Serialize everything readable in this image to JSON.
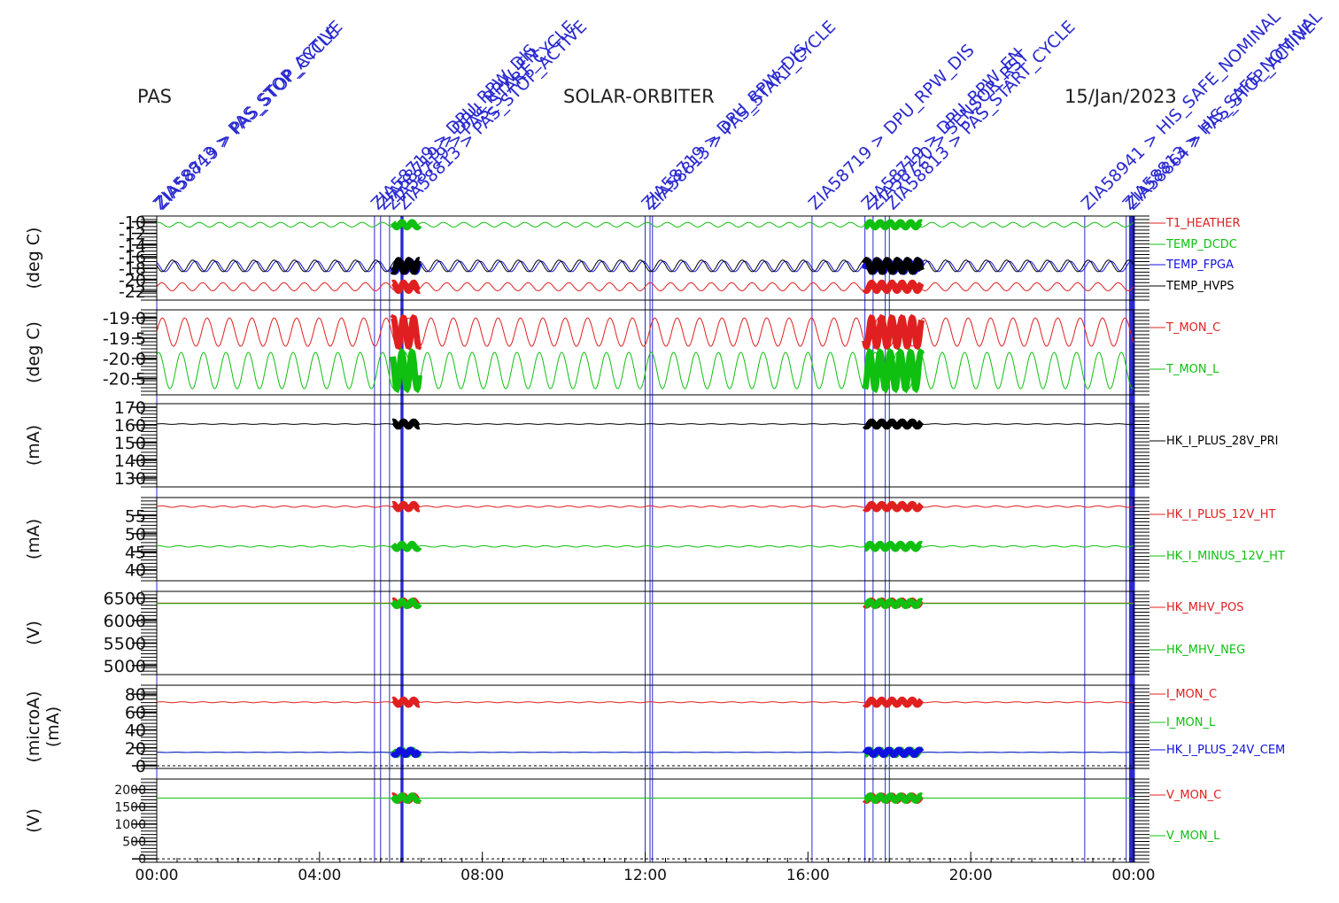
{
  "header": {
    "instrument": "PAS",
    "mission": "SOLAR-ORBITER",
    "date": "15/Jan/2023"
  },
  "colors": {
    "red": "#e02020",
    "green": "#10c010",
    "blue": "#1010e0",
    "black": "#000000",
    "event": "#2a2ad0"
  },
  "chart_data": {
    "type": "line",
    "x_axis": {
      "unit": "hours",
      "range": [
        0,
        24
      ],
      "ticks": [
        0,
        4,
        8,
        12,
        16,
        20,
        24
      ],
      "tick_labels": [
        "00:00",
        "04:00",
        "08:00",
        "12:00",
        "16:00",
        "20:00",
        "00:00"
      ]
    },
    "events": {
      "times": [
        0.0,
        5.35,
        5.5,
        5.72,
        6.0,
        6.03,
        12.0,
        12.12,
        12.18,
        16.1,
        17.4,
        17.6,
        17.9,
        18.0,
        22.8,
        23.82,
        23.9,
        23.94,
        23.97,
        24.0
      ],
      "labels": [
        {
          "t": 0.0,
          "text": "ZIA58843 > PAS_STOP_ACTIVE"
        },
        {
          "t": 0.05,
          "text": "ZIA58719 > PAS_STOP_CYCLE"
        },
        {
          "t": 5.35,
          "text": "ZIA58719 > DPU_RPW_DIS"
        },
        {
          "t": 5.5,
          "text": "ZIA58719 > DPU_RPW_EN"
        },
        {
          "t": 5.72,
          "text": "ZIA58719 > PAS_START_CYCLE"
        },
        {
          "t": 6.0,
          "text": "ZIA58813 > PAS_STOP_ACTIVE"
        },
        {
          "t": 12.0,
          "text": "ZIA58719 > DPU_RPW_DIS"
        },
        {
          "t": 12.12,
          "text": "ZIA58813 > PAS_START_CYCLE"
        },
        {
          "t": 16.1,
          "text": "ZIA58719 > DPU_RPW_DIS"
        },
        {
          "t": 17.4,
          "text": "ZIA58719 > DPU_RPW_EN"
        },
        {
          "t": 17.6,
          "text": "ZIA58720 > SENSOR_RST"
        },
        {
          "t": 18.0,
          "text": "ZIA58813 > PAS_START_CYCLE"
        },
        {
          "t": 22.8,
          "text": "ZIA58941 > HIS_SAFE_NOMINAL"
        },
        {
          "t": 23.82,
          "text": "ZIA58813 > HIS_SAFE_NOMINAL"
        },
        {
          "t": 23.9,
          "text": "ZIA58864 > PAS_STOP_ACTIVE"
        }
      ]
    },
    "panels": [
      {
        "ylabel": "(deg C)",
        "ylim": [
          -23.5,
          -9
        ],
        "ytick_labels": [
          "-10",
          "-12",
          "-14",
          "-16",
          "-18",
          "-20",
          "-22"
        ],
        "ytick_values": [
          -10,
          -12,
          -14,
          -16,
          -18,
          -20,
          -22
        ],
        "series": [
          {
            "name": "T1_HEATHER",
            "color": "#e02020",
            "base": -21.2,
            "amp": 0.7
          },
          {
            "name": "TEMP_DCDC",
            "color": "#10c010",
            "base": -10.5,
            "amp": 0.4
          },
          {
            "name": "TEMP_FPGA",
            "color": "#1010e0",
            "base": -17.7,
            "amp": 0.9
          },
          {
            "name": "TEMP_HVPS",
            "color": "#000000",
            "base": -17.6,
            "amp": 1.0
          }
        ]
      },
      {
        "ylabel": "(deg C)",
        "ylim": [
          -20.9,
          -18.8
        ],
        "ytick_labels": [
          "-19.0",
          "-19.5",
          "-20.0",
          "-20.5"
        ],
        "ytick_values": [
          -19.0,
          -19.5,
          -20.0,
          -20.5
        ],
        "series": [
          {
            "name": "T_MON_C",
            "color": "#e02020",
            "base": -19.35,
            "amp": 0.35
          },
          {
            "name": "T_MON_L",
            "color": "#10c010",
            "base": -20.3,
            "amp": 0.45
          }
        ]
      },
      {
        "ylabel": "(mA)",
        "ylim": [
          125,
          172
        ],
        "ytick_labels": [
          "170",
          "160",
          "150",
          "140",
          "130"
        ],
        "ytick_values": [
          170,
          160,
          150,
          140,
          130
        ],
        "series": [
          {
            "name": "HK_I_PLUS_28V_PRI",
            "color": "#000000",
            "base": 160.5,
            "amp": 0.2
          }
        ]
      },
      {
        "ylabel": "(mA)",
        "ylim": [
          37,
          60
        ],
        "ytick_labels": [
          "55",
          "50",
          "45",
          "40"
        ],
        "ytick_values": [
          55,
          50,
          45,
          40
        ],
        "series": [
          {
            "name": "HK_I_PLUS_12V_HT",
            "color": "#e02020",
            "base": 57.5,
            "amp": 0.2
          },
          {
            "name": "HK_I_MINUS_12V_HT",
            "color": "#10c010",
            "base": 46.5,
            "amp": 0.2
          }
        ]
      },
      {
        "ylabel": "(V)",
        "ylim": [
          4800,
          6650
        ],
        "ytick_labels": [
          "6500",
          "6000",
          "5500",
          "5000"
        ],
        "ytick_values": [
          6500,
          6000,
          5500,
          5000
        ],
        "series": [
          {
            "name": "HK_MHV_POS",
            "color": "#e02020",
            "base": 6390,
            "amp": 0
          },
          {
            "name": "HK_MHV_NEG",
            "color": "#10c010",
            "base": 6380,
            "amp": 0
          }
        ]
      },
      {
        "ylabel": "(microA)",
        "ylabel2": "(mA)",
        "ylim": [
          -3,
          90
        ],
        "ytick_labels": [
          "80",
          "60",
          "40",
          "20",
          "0"
        ],
        "ytick_values": [
          80,
          60,
          40,
          20,
          0
        ],
        "series": [
          {
            "name": "I_MON_C",
            "color": "#e02020",
            "base": 71,
            "amp": 0.5
          },
          {
            "name": "I_MON_L",
            "color": "#10c010",
            "base": 15,
            "amp": 0.2
          },
          {
            "name": "HK_I_PLUS_24V_CEM",
            "color": "#1010e0",
            "base": 15,
            "amp": 0.2
          }
        ]
      },
      {
        "ylabel": "(V)",
        "ylim": [
          -100,
          2300
        ],
        "ytick_labels": [
          "2000",
          "1500",
          "1000",
          "500",
          "0"
        ],
        "ytick_values": [
          2000,
          1500,
          1000,
          500,
          0
        ],
        "series": [
          {
            "name": "V_MON_C",
            "color": "#e02020",
            "base": 1750,
            "amp": 0
          },
          {
            "name": "V_MON_L",
            "color": "#10c010",
            "base": 1750,
            "amp": 0
          }
        ]
      }
    ]
  }
}
